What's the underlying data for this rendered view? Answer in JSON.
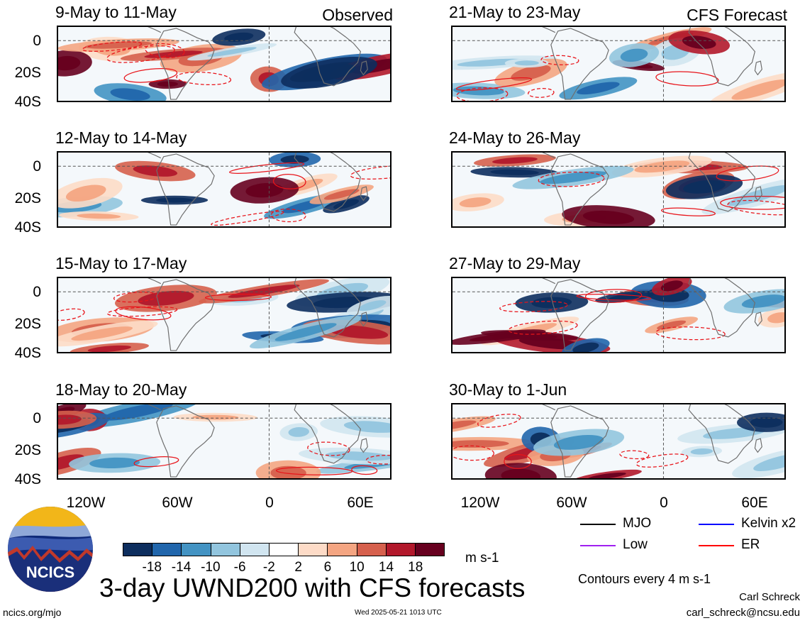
{
  "panels": [
    {
      "title": "9-May to 11-May",
      "tag": "Observed"
    },
    {
      "title": "12-May to 14-May",
      "tag": ""
    },
    {
      "title": "15-May to 17-May",
      "tag": ""
    },
    {
      "title": "18-May to 20-May",
      "tag": ""
    },
    {
      "title": "21-May to 23-May",
      "tag": "CFS Forecast"
    },
    {
      "title": "24-May to 26-May",
      "tag": ""
    },
    {
      "title": "27-May to 29-May",
      "tag": ""
    },
    {
      "title": "30-May to 1-Jun",
      "tag": ""
    }
  ],
  "lat_labels": [
    "0",
    "20S",
    "40S"
  ],
  "lon_labels": [
    "120W",
    "60W",
    "0",
    "60E"
  ],
  "colorbar": {
    "colors": [
      "#0d2e5e",
      "#2166ac",
      "#4393c3",
      "#92c5de",
      "#d1e5f0",
      "#ffffff",
      "#fddbc7",
      "#f4a582",
      "#d6604d",
      "#b2182b",
      "#67001f"
    ],
    "ticks": [
      "-18",
      "-14",
      "-10",
      "-6",
      "-2",
      "2",
      "6",
      "10",
      "14",
      "18"
    ],
    "units": "m s-1"
  },
  "legend": {
    "items": [
      {
        "label": "MJO",
        "color": "#000000"
      },
      {
        "label": "Kelvin x2",
        "color": "#0000ff"
      },
      {
        "label": "Low",
        "color": "#a020f0"
      },
      {
        "label": "ER",
        "color": "#ff0000"
      }
    ],
    "contour_note": "Contours every 4 m s-1"
  },
  "logo_text": "NCICS",
  "main_title": "3-day UWND200 with CFS forecasts",
  "footer": {
    "left": "ncics.org/mjo",
    "center": "Wed 2025-05-21 1013 UTC",
    "author": "Carl Schreck",
    "email": "carl_schreck@ncsu.edu"
  }
}
